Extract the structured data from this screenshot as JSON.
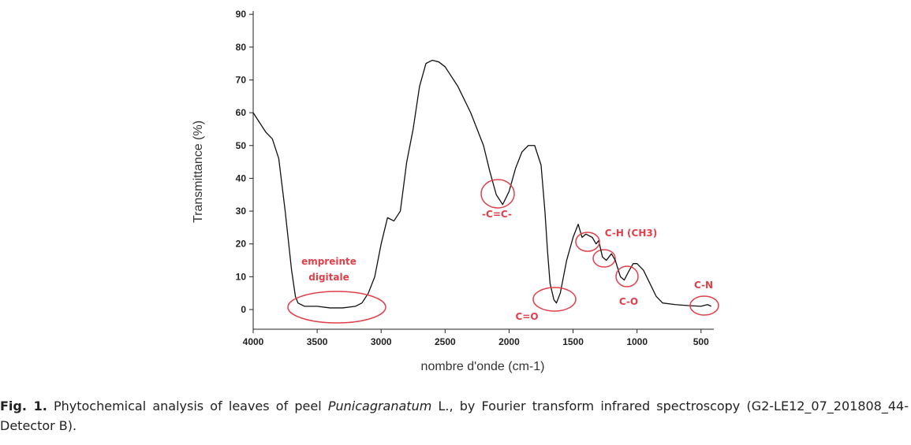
{
  "chart_data": {
    "type": "line",
    "x_label": "nombre d'onde (cm-1)",
    "y_label": "Transmittance (%)",
    "xlim": [
      4000,
      400
    ],
    "ylim": [
      -6,
      91
    ],
    "xticks": [
      4000,
      3500,
      3000,
      2500,
      2000,
      1500,
      1000,
      500
    ],
    "yticks": [
      0,
      10,
      20,
      30,
      40,
      50,
      60,
      70,
      80,
      90
    ],
    "grid": false,
    "color": "#111111",
    "annotation_color": "#e0404a",
    "x": [
      4000,
      3950,
      3900,
      3850,
      3800,
      3750,
      3700,
      3670,
      3650,
      3600,
      3500,
      3400,
      3300,
      3200,
      3150,
      3100,
      3050,
      3000,
      2950,
      2900,
      2850,
      2800,
      2750,
      2700,
      2650,
      2600,
      2550,
      2500,
      2400,
      2300,
      2200,
      2150,
      2100,
      2050,
      2000,
      1950,
      1900,
      1850,
      1800,
      1750,
      1720,
      1700,
      1680,
      1650,
      1630,
      1600,
      1550,
      1500,
      1460,
      1430,
      1400,
      1350,
      1320,
      1300,
      1270,
      1240,
      1200,
      1170,
      1130,
      1100,
      1060,
      1030,
      1000,
      950,
      900,
      850,
      800,
      700,
      600,
      500,
      450,
      420
    ],
    "values": [
      60,
      57,
      54,
      52,
      46,
      30,
      12,
      4,
      2,
      1,
      1,
      0.5,
      0.5,
      1,
      2,
      5,
      10,
      20,
      28,
      27,
      30,
      45,
      55,
      68,
      75,
      76,
      75.5,
      74,
      68,
      60,
      50,
      42,
      35,
      32,
      36,
      43,
      48,
      50,
      50,
      44,
      30,
      18,
      8,
      3,
      2,
      5,
      15,
      22,
      26,
      22,
      23,
      22,
      20,
      21,
      16,
      15,
      17,
      15,
      10,
      9,
      12,
      14,
      14,
      12,
      8,
      4,
      2,
      1.5,
      1.2,
      1,
      1.5,
      1
    ],
    "annotations": [
      [
        "empreinte",
        "digitale"
      ],
      [
        "-C=C-"
      ],
      [
        "C=O"
      ],
      [
        "C-H (CH3)"
      ],
      [
        "C-O"
      ],
      [
        "C-N"
      ]
    ]
  },
  "caption": {
    "label": "Fig. 1.",
    "text_before": "Phytochemical analysis of leaves of peel",
    "italic": "Punicagranatum",
    "text_after": "L., by Fourier transform infrared spectroscopy (G2-LE12_07_201808_44-Detector B)."
  }
}
